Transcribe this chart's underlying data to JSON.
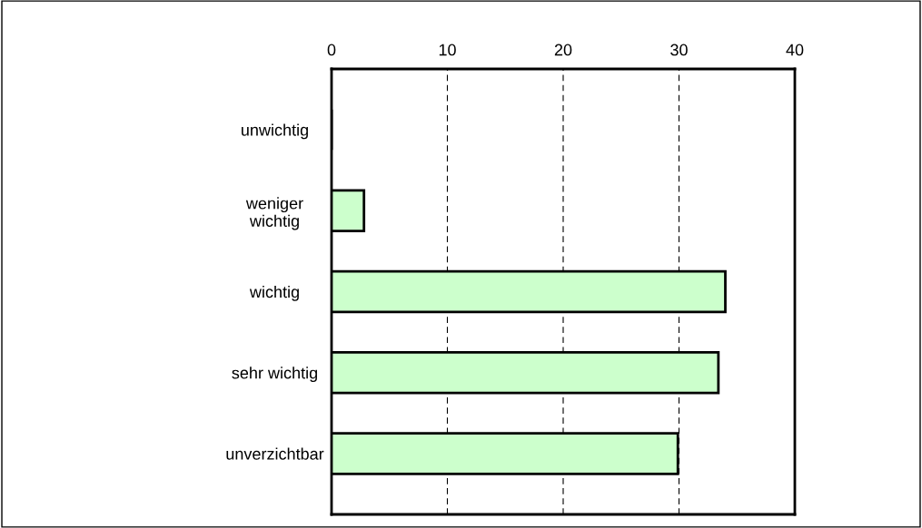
{
  "chart_data": {
    "type": "bar",
    "orientation": "horizontal",
    "categories": [
      "unwichtig",
      "weniger\nwichtig",
      "wichtig",
      "sehr wichtig",
      "unverzichtbar"
    ],
    "values": [
      0,
      2.8,
      34.0,
      33.4,
      29.9
    ],
    "color": "#ccffcc",
    "xlim": [
      0,
      40
    ],
    "xticks": [
      0,
      10,
      20,
      30,
      40
    ],
    "grid": "x",
    "legend": false
  }
}
